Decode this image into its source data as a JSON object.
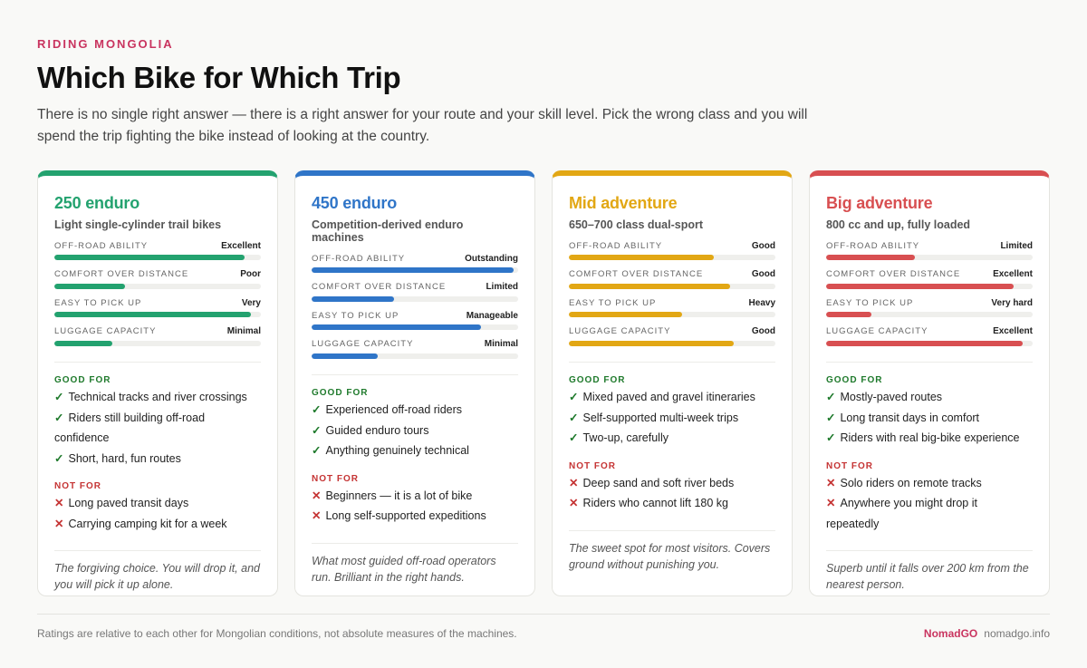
{
  "header": {
    "kicker": "RIDING MONGOLIA",
    "title": "Which Bike for Which Trip",
    "intro": "There is no single right answer — there is a right answer for your route and your skill level. Pick the wrong class and you will spend the trip fighting the bike instead of looking at the country."
  },
  "cards": [
    {
      "title": "250 enduro",
      "subtitle": "Light single-cylinder trail bikes",
      "color": "#23a26f",
      "ratings": [
        {
          "label": "OFF-ROAD ABILITY",
          "value": "Excellent",
          "level": 92
        },
        {
          "label": "COMFORT OVER DISTANCE",
          "value": "Poor",
          "level": 34
        },
        {
          "label": "EASY TO PICK UP",
          "value": "Very",
          "level": 95
        },
        {
          "label": "LUGGAGE CAPACITY",
          "value": "Minimal",
          "level": 28
        }
      ],
      "good_heading": "GOOD FOR",
      "good": [
        "Technical tracks and river crossings",
        "Riders still building off-road confidence",
        "Short, hard, fun routes"
      ],
      "not_heading": "NOT FOR",
      "not": [
        "Long paved transit days",
        "Carrying camping kit for a week"
      ],
      "note": "The forgiving choice. You will drop it, and you will pick it up alone."
    },
    {
      "title": "450 enduro",
      "subtitle": "Competition-derived enduro machines",
      "color": "#2f75c8",
      "ratings": [
        {
          "label": "OFF-ROAD ABILITY",
          "value": "Outstanding",
          "level": 98
        },
        {
          "label": "COMFORT OVER DISTANCE",
          "value": "Limited",
          "level": 40
        },
        {
          "label": "EASY TO PICK UP",
          "value": "Manageable",
          "level": 82
        },
        {
          "label": "LUGGAGE CAPACITY",
          "value": "Minimal",
          "level": 32
        }
      ],
      "good_heading": "GOOD FOR",
      "good": [
        "Experienced off-road riders",
        "Guided enduro tours",
        "Anything genuinely technical"
      ],
      "not_heading": "NOT FOR",
      "not": [
        "Beginners — it is a lot of bike",
        "Long self-supported expeditions"
      ],
      "note": "What most guided off-road operators run. Brilliant in the right hands."
    },
    {
      "title": "Mid adventure",
      "subtitle": "650–700 class dual-sport",
      "color": "#e2a714",
      "ratings": [
        {
          "label": "OFF-ROAD ABILITY",
          "value": "Good",
          "level": 70
        },
        {
          "label": "COMFORT OVER DISTANCE",
          "value": "Good",
          "level": 78
        },
        {
          "label": "EASY TO PICK UP",
          "value": "Heavy",
          "level": 55
        },
        {
          "label": "LUGGAGE CAPACITY",
          "value": "Good",
          "level": 80
        }
      ],
      "good_heading": "GOOD FOR",
      "good": [
        "Mixed paved and gravel itineraries",
        "Self-supported multi-week trips",
        "Two-up, carefully"
      ],
      "not_heading": "NOT FOR",
      "not": [
        "Deep sand and soft river beds",
        "Riders who cannot lift 180 kg"
      ],
      "note": "The sweet spot for most visitors. Covers ground without punishing you."
    },
    {
      "title": "Big adventure",
      "subtitle": "800 cc and up, fully loaded",
      "color": "#d84f51",
      "ratings": [
        {
          "label": "OFF-ROAD ABILITY",
          "value": "Limited",
          "level": 43
        },
        {
          "label": "COMFORT OVER DISTANCE",
          "value": "Excellent",
          "level": 91
        },
        {
          "label": "EASY TO PICK UP",
          "value": "Very hard",
          "level": 22
        },
        {
          "label": "LUGGAGE CAPACITY",
          "value": "Excellent",
          "level": 95
        }
      ],
      "good_heading": "GOOD FOR",
      "good": [
        "Mostly-paved routes",
        "Long transit days in comfort",
        "Riders with real big-bike experience"
      ],
      "not_heading": "NOT FOR",
      "not": [
        "Solo riders on remote tracks",
        "Anywhere you might drop it repeatedly"
      ],
      "note": "Superb until it falls over 200 km from the nearest person."
    }
  ],
  "footer": {
    "note": "Ratings are relative to each other for Mongolian conditions, not absolute measures of the machines.",
    "brand": "NomadGO",
    "site": "nomadgo.info"
  }
}
